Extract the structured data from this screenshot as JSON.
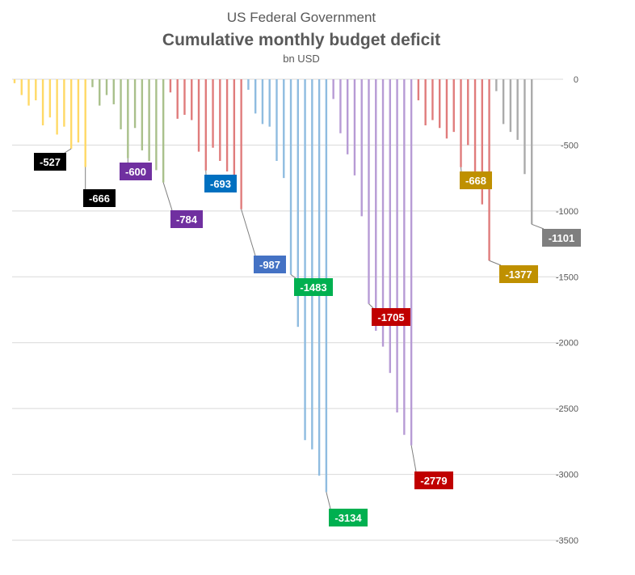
{
  "chart_data": {
    "type": "bar",
    "supertitle": "US Federal Government",
    "title": "Cumulative monthly budget deficit",
    "subtitle": "bn USD",
    "ylim": [
      -3500,
      0
    ],
    "yticks": [
      0,
      -500,
      -1000,
      -1500,
      -2000,
      -2500,
      -3000,
      -3500
    ],
    "grid": true,
    "legend": "none",
    "series": [
      {
        "color": "#FFD966",
        "values": [
          -30,
          -120,
          -200,
          -160,
          -350,
          -290,
          -420,
          -360,
          -527,
          -480,
          -666
        ]
      },
      {
        "color": "#A9C08B",
        "values": [
          -60,
          -200,
          -120,
          -190,
          -380,
          -600,
          -370,
          -540,
          -620,
          -690,
          -784
        ]
      },
      {
        "color": "#E07C7C",
        "values": [
          -100,
          -300,
          -270,
          -310,
          -550,
          -693,
          -520,
          -620,
          -700,
          -860,
          -987
        ]
      },
      {
        "color": "#8FBCE0",
        "values": [
          -80,
          -260,
          -340,
          -360,
          -620,
          -750,
          -1483,
          -1880,
          -2740,
          -2810,
          -3010,
          -3134
        ]
      },
      {
        "color": "#B79BD5",
        "values": [
          -150,
          -410,
          -570,
          -730,
          -1040,
          -1705,
          -1910,
          -2030,
          -2230,
          -2530,
          -2700,
          -2779
        ]
      },
      {
        "color": "#E07C7C",
        "values": [
          -160,
          -350,
          -310,
          -370,
          -450,
          -400,
          -668,
          -500,
          -730,
          -950,
          -1377
        ]
      },
      {
        "color": "#ABABAB",
        "values": [
          -90,
          -340,
          -400,
          -460,
          -720,
          -1101
        ]
      }
    ],
    "callouts": [
      {
        "label": "-527",
        "color": "#000000",
        "series": 0,
        "index": 8
      },
      {
        "label": "-666",
        "color": "#000000",
        "series": 0,
        "index": 10
      },
      {
        "label": "-600",
        "color": "#7030A0",
        "series": 1,
        "index": 5
      },
      {
        "label": "-784",
        "color": "#7030A0",
        "series": 1,
        "index": 10
      },
      {
        "label": "-693",
        "color": "#0070C0",
        "series": 2,
        "index": 5
      },
      {
        "label": "-987",
        "color": "#4472C4",
        "series": 2,
        "index": 10
      },
      {
        "label": "-1483",
        "color": "#00B050",
        "series": 3,
        "index": 6
      },
      {
        "label": "-3134",
        "color": "#00B050",
        "series": 3,
        "index": 11
      },
      {
        "label": "-1705",
        "color": "#C00000",
        "series": 4,
        "index": 5
      },
      {
        "label": "-2779",
        "color": "#C00000",
        "series": 4,
        "index": 11
      },
      {
        "label": "-668",
        "color": "#BF9000",
        "series": 5,
        "index": 6
      },
      {
        "label": "-1377",
        "color": "#BF9000",
        "series": 5,
        "index": 10
      },
      {
        "label": "-1101",
        "color": "#7F7F7F",
        "series": 6,
        "index": 5
      }
    ]
  }
}
